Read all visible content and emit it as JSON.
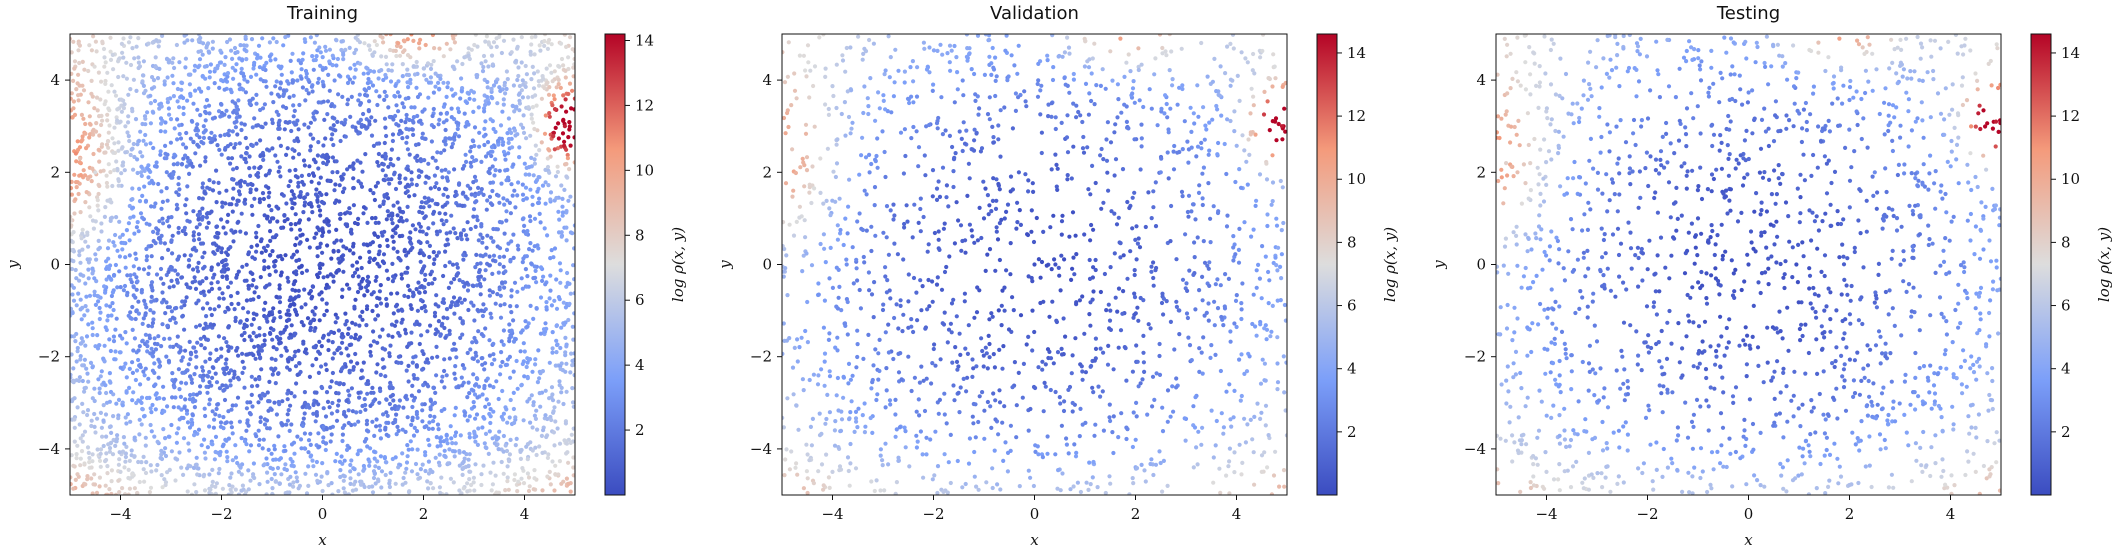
{
  "chart_data": [
    {
      "type": "scatter",
      "title": "Training",
      "xlabel": "x",
      "ylabel": "y",
      "xlim": [
        -5,
        5
      ],
      "ylim": [
        -5,
        5
      ],
      "xticks": [
        -4,
        -2,
        0,
        2,
        4
      ],
      "yticks": [
        -4,
        -2,
        0,
        2,
        4
      ],
      "colorbar": {
        "label": "log ρ(x, y)",
        "range": [
          0,
          14.2
        ],
        "ticks": [
          2,
          4,
          6,
          8,
          10,
          12,
          14
        ],
        "colormap": "coolwarm"
      },
      "approx_point_count": 5000,
      "hot_region": {
        "x": 4.9,
        "y": 3.0,
        "value": 14
      },
      "series": [
        {
          "points": [
            [
              0.0,
              0.0,
              0.2
            ],
            [
              -1.0,
              1.0,
              0.6
            ],
            [
              1.5,
              -1.0,
              0.9
            ],
            [
              -2.5,
              -2.0,
              2.0
            ],
            [
              2.5,
              2.0,
              2.8
            ],
            [
              -4.5,
              2.0,
              7.0
            ],
            [
              -4.0,
              -4.5,
              6.5
            ],
            [
              4.5,
              -4.5,
              7.5
            ],
            [
              1.5,
              4.8,
              10.0
            ],
            [
              4.8,
              3.0,
              13.5
            ],
            [
              4.6,
              2.5,
              12.5
            ],
            [
              -4.8,
              2.3,
              8.5
            ]
          ]
        }
      ],
      "grid": false
    },
    {
      "type": "scatter",
      "title": "Validation",
      "xlabel": "x",
      "ylabel": "y",
      "xlim": [
        -5,
        5
      ],
      "ylim": [
        -5,
        5
      ],
      "xticks": [
        -4,
        -2,
        0,
        2,
        4
      ],
      "yticks": [
        -4,
        -2,
        0,
        2,
        4
      ],
      "colorbar": {
        "label": "log ρ(x, y)",
        "range": [
          0,
          14.6
        ],
        "ticks": [
          2,
          4,
          6,
          8,
          10,
          12,
          14
        ],
        "colormap": "coolwarm"
      },
      "approx_point_count": 1700,
      "hot_region": {
        "x": 4.9,
        "y": 3.0,
        "value": 14.5
      },
      "series": [
        {
          "points": [
            [
              0.0,
              0.0,
              0.2
            ],
            [
              -1.0,
              1.0,
              0.6
            ],
            [
              1.5,
              -1.0,
              0.9
            ],
            [
              -2.5,
              -2.0,
              2.0
            ],
            [
              2.5,
              2.0,
              2.8
            ],
            [
              -4.8,
              2.5,
              8.5
            ],
            [
              -4.0,
              -4.5,
              6.5
            ],
            [
              4.5,
              -4.5,
              7.5
            ],
            [
              1.7,
              4.9,
              10.5
            ],
            [
              4.9,
              3.0,
              14.0
            ]
          ]
        }
      ],
      "grid": false
    },
    {
      "type": "scatter",
      "title": "Testing",
      "xlabel": "x",
      "ylabel": "y",
      "xlim": [
        -5,
        5
      ],
      "ylim": [
        -5,
        5
      ],
      "xticks": [
        -4,
        -2,
        0,
        2,
        4
      ],
      "yticks": [
        -4,
        -2,
        0,
        2,
        4
      ],
      "colorbar": {
        "label": "log ρ(x, y)",
        "range": [
          0,
          14.6
        ],
        "ticks": [
          2,
          4,
          6,
          8,
          10,
          12,
          14
        ],
        "colormap": "coolwarm"
      },
      "approx_point_count": 1700,
      "hot_region": {
        "x": 4.9,
        "y": 3.1,
        "value": 14.5
      },
      "series": [
        {
          "points": [
            [
              0.0,
              0.0,
              0.2
            ],
            [
              -1.0,
              1.0,
              0.6
            ],
            [
              1.5,
              -1.0,
              0.9
            ],
            [
              -2.5,
              -2.0,
              2.0
            ],
            [
              2.5,
              2.0,
              2.8
            ],
            [
              -4.8,
              2.2,
              8.0
            ],
            [
              -4.0,
              -4.5,
              6.5
            ],
            [
              4.5,
              -4.5,
              7.5
            ],
            [
              1.8,
              4.9,
              10.5
            ],
            [
              4.9,
              3.1,
              14.0
            ]
          ]
        }
      ],
      "grid": false
    }
  ]
}
